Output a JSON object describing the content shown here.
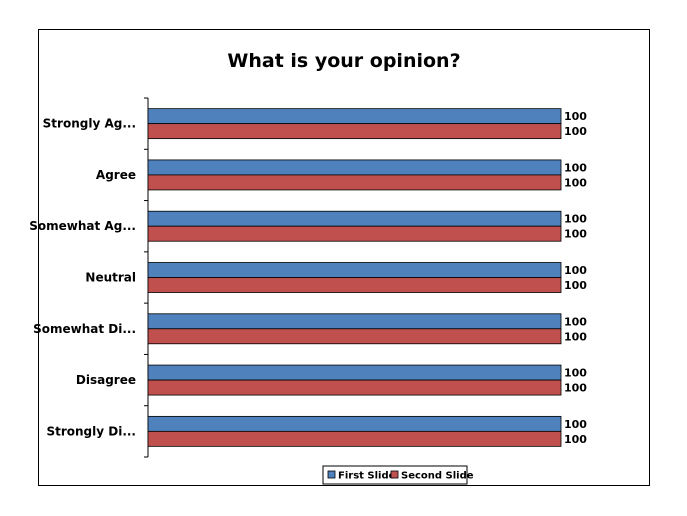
{
  "chart_data": {
    "type": "bar",
    "orientation": "horizontal",
    "title": "What is your opinion?",
    "xlabel": "",
    "ylabel": "",
    "xlim": [
      0,
      100
    ],
    "grid": false,
    "legend_position": "bottom",
    "categories": [
      "Strongly Ag...",
      "Agree",
      "Somewhat Ag...",
      "Neutral",
      "Somewhat Di...",
      "Disagree",
      "Strongly Di..."
    ],
    "series": [
      {
        "name": "First Slide",
        "color": "#4f81bd",
        "values": [
          100,
          100,
          100,
          100,
          100,
          100,
          100
        ]
      },
      {
        "name": "Second Slide",
        "color": "#c0504d",
        "values": [
          100,
          100,
          100,
          100,
          100,
          100,
          100
        ]
      }
    ]
  }
}
